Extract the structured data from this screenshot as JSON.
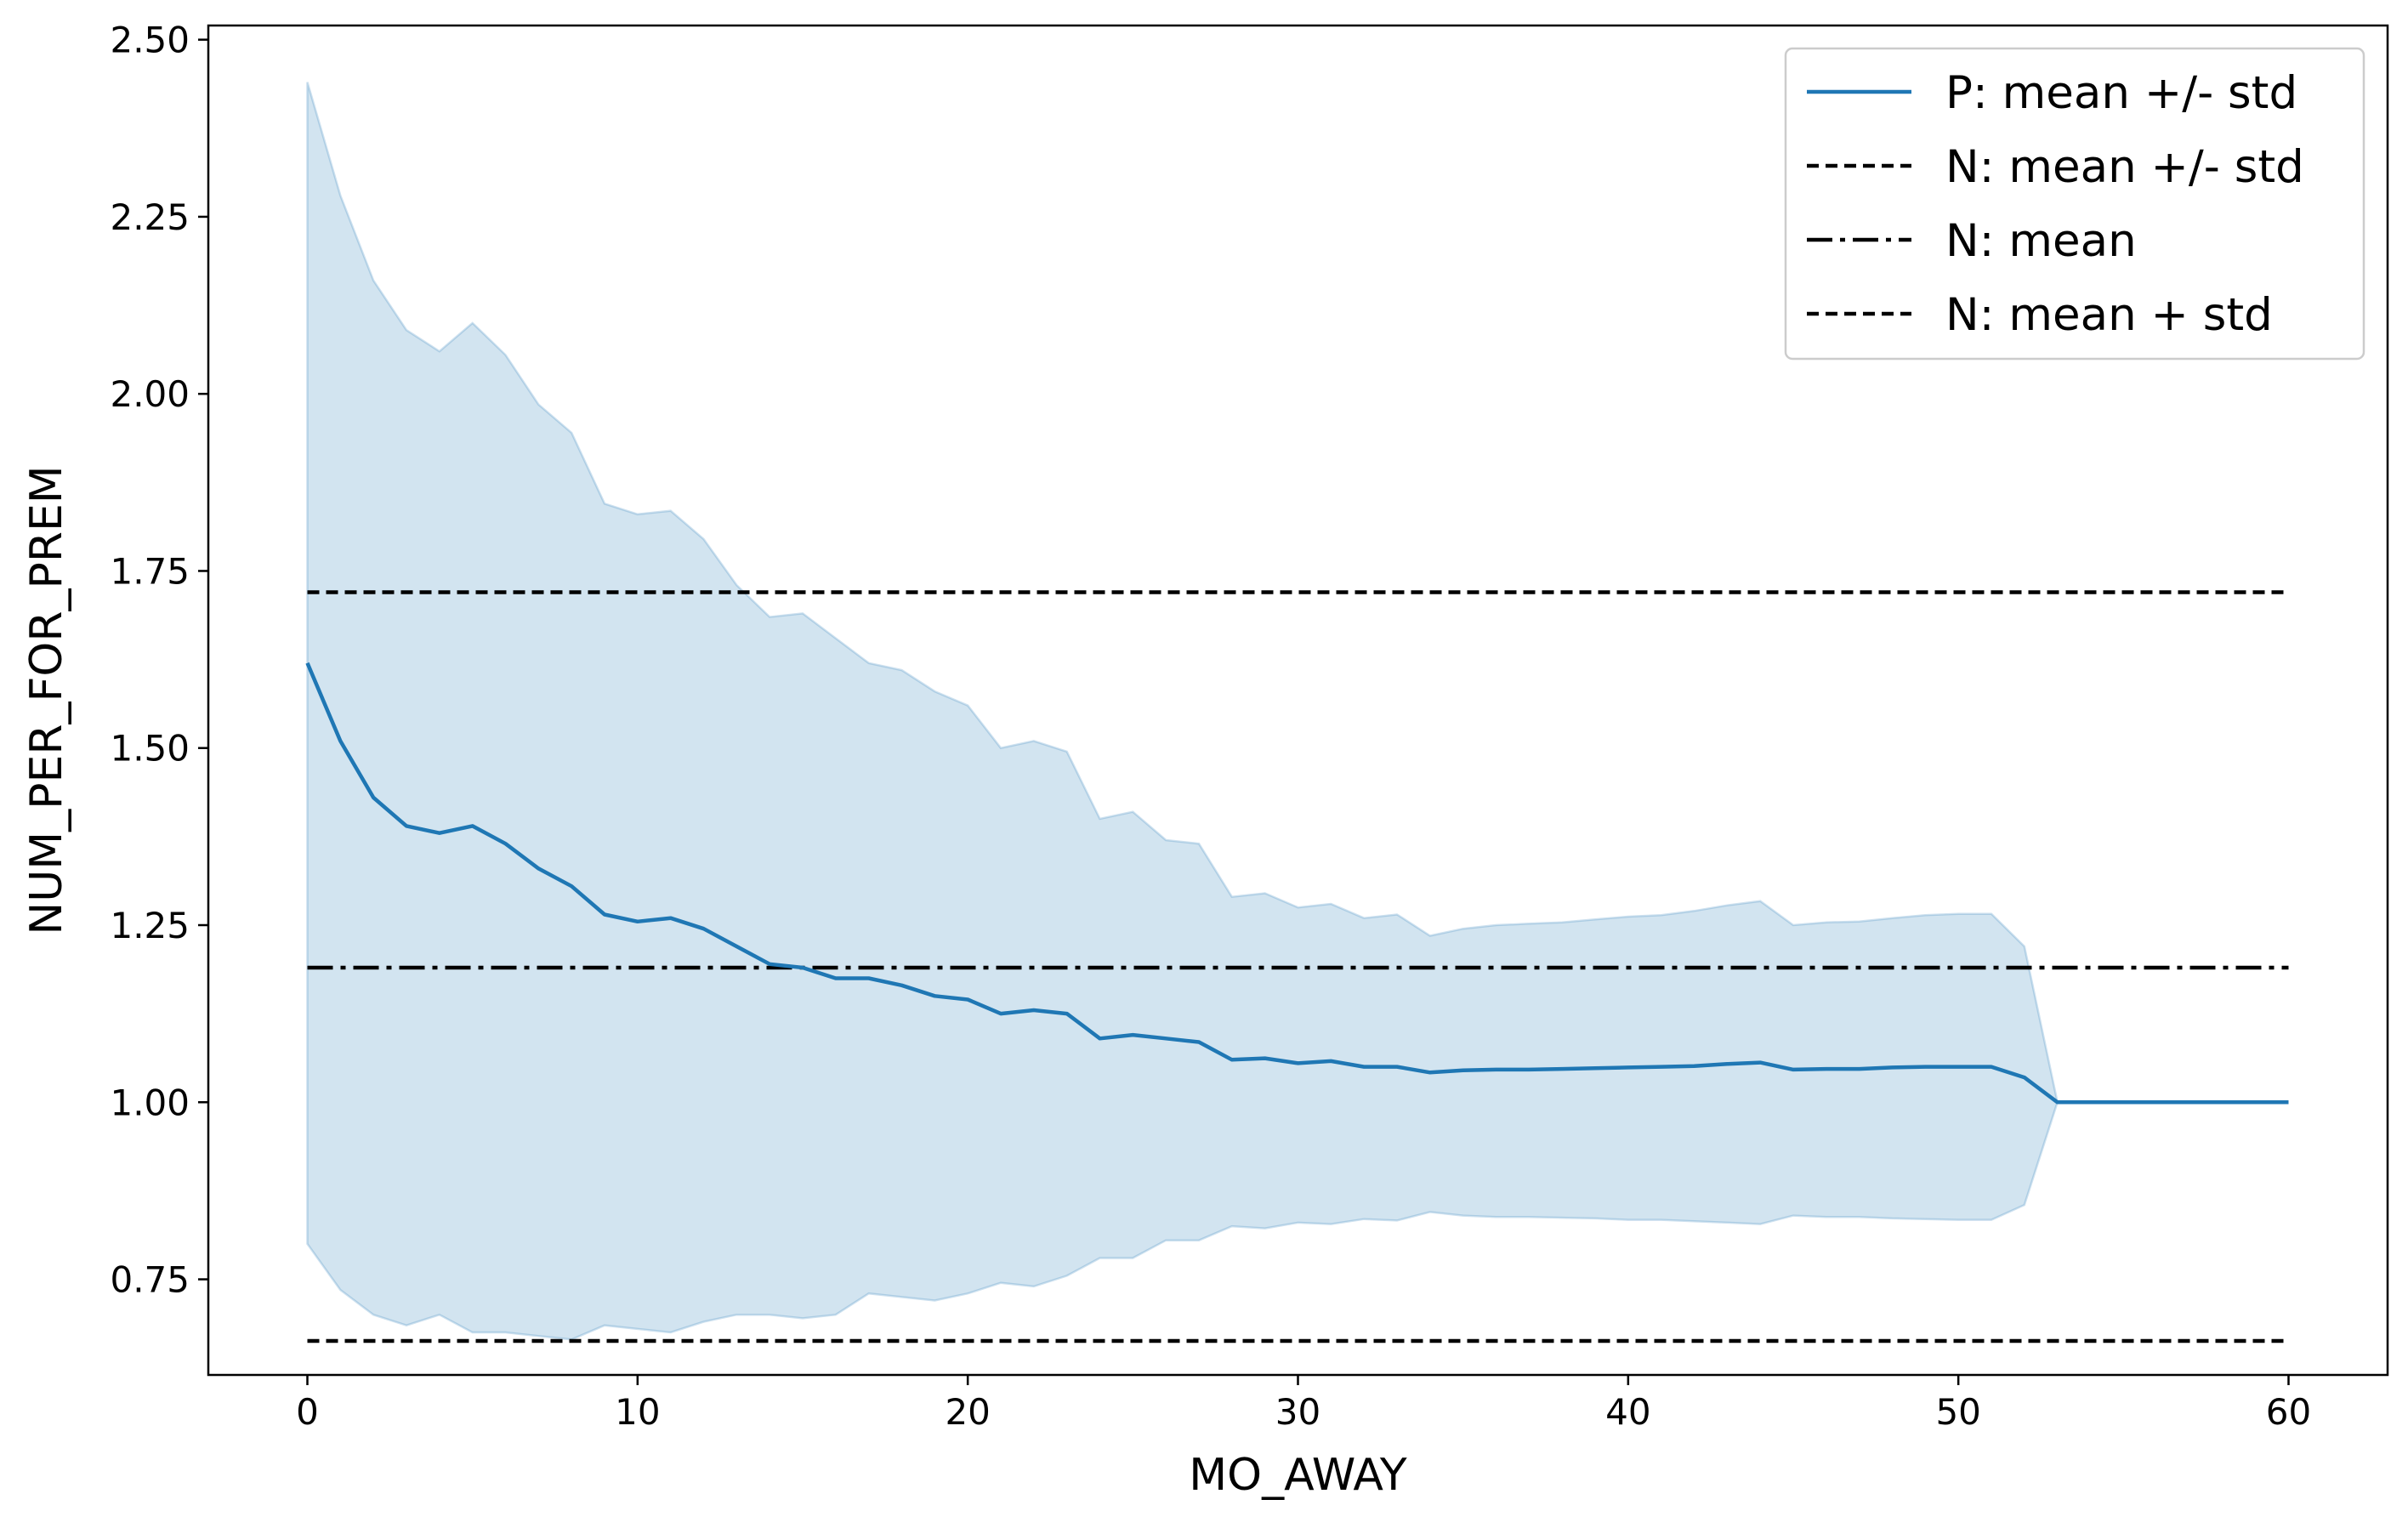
{
  "chart_data": {
    "type": "line",
    "title": "",
    "xlabel": "MO_AWAY",
    "ylabel": "NUM_PER_FOR_PREM",
    "xlim": [
      -3,
      63
    ],
    "ylim": [
      0.615,
      2.52
    ],
    "xticks": [
      0,
      10,
      20,
      30,
      40,
      50,
      60
    ],
    "xtick_labels": [
      "0",
      "10",
      "20",
      "30",
      "40",
      "50",
      "60"
    ],
    "yticks": [
      0.75,
      1.0,
      1.25,
      1.5,
      1.75,
      2.0,
      2.25,
      2.5
    ],
    "ytick_labels": [
      "0.75",
      "1.00",
      "1.25",
      "1.50",
      "1.75",
      "2.00",
      "2.25",
      "2.50"
    ],
    "grid": false,
    "legend_position": "top-right",
    "colors": {
      "p_line": "#1f77b4",
      "p_band": "#1f77b4",
      "n_lines": "#000000"
    },
    "series": [
      {
        "name": "P: mean +/- std",
        "style": "solid-with-band",
        "x": [
          0,
          1,
          2,
          3,
          4,
          5,
          6,
          7,
          8,
          9,
          10,
          11,
          12,
          13,
          14,
          15,
          16,
          17,
          18,
          19,
          20,
          21,
          22,
          23,
          24,
          25,
          26,
          27,
          28,
          29,
          30,
          31,
          32,
          33,
          34,
          35,
          36,
          37,
          38,
          39,
          40,
          41,
          42,
          43,
          44,
          45,
          46,
          47,
          48,
          49,
          50,
          51,
          52,
          53,
          54,
          55,
          56,
          57,
          58,
          59,
          60
        ],
        "mean": [
          1.62,
          1.51,
          1.43,
          1.39,
          1.38,
          1.39,
          1.365,
          1.33,
          1.305,
          1.265,
          1.255,
          1.26,
          1.245,
          1.22,
          1.195,
          1.19,
          1.175,
          1.175,
          1.165,
          1.15,
          1.145,
          1.125,
          1.13,
          1.125,
          1.09,
          1.095,
          1.09,
          1.085,
          1.06,
          1.062,
          1.055,
          1.058,
          1.05,
          1.05,
          1.042,
          1.045,
          1.046,
          1.046,
          1.047,
          1.048,
          1.049,
          1.05,
          1.051,
          1.054,
          1.056,
          1.046,
          1.047,
          1.047,
          1.049,
          1.05,
          1.05,
          1.05,
          1.035,
          1.0,
          1.0,
          1.0,
          1.0,
          1.0,
          1.0,
          1.0,
          1.0
        ],
        "upper": [
          2.44,
          2.28,
          2.16,
          2.09,
          2.06,
          2.1,
          2.055,
          1.985,
          1.945,
          1.845,
          1.83,
          1.835,
          1.795,
          1.73,
          1.685,
          1.69,
          1.655,
          1.62,
          1.61,
          1.58,
          1.56,
          1.5,
          1.51,
          1.495,
          1.4,
          1.41,
          1.37,
          1.365,
          1.29,
          1.295,
          1.275,
          1.28,
          1.26,
          1.265,
          1.235,
          1.245,
          1.25,
          1.252,
          1.254,
          1.258,
          1.262,
          1.264,
          1.27,
          1.278,
          1.284,
          1.25,
          1.254,
          1.255,
          1.26,
          1.264,
          1.266,
          1.266,
          1.22,
          1.0,
          1.0,
          1.0,
          1.0,
          1.0,
          1.0,
          1.0,
          1.0
        ],
        "lower": [
          0.8,
          0.735,
          0.7,
          0.685,
          0.7,
          0.675,
          0.675,
          0.67,
          0.665,
          0.685,
          0.68,
          0.675,
          0.69,
          0.7,
          0.7,
          0.695,
          0.7,
          0.73,
          0.725,
          0.72,
          0.73,
          0.745,
          0.74,
          0.755,
          0.78,
          0.78,
          0.805,
          0.805,
          0.825,
          0.822,
          0.83,
          0.828,
          0.835,
          0.833,
          0.845,
          0.84,
          0.838,
          0.838,
          0.837,
          0.836,
          0.834,
          0.834,
          0.832,
          0.83,
          0.828,
          0.84,
          0.838,
          0.838,
          0.836,
          0.835,
          0.834,
          0.834,
          0.855,
          1.0,
          1.0,
          1.0,
          1.0,
          1.0,
          1.0,
          1.0,
          1.0
        ]
      },
      {
        "name": "N: mean +/- std",
        "style": "dashed",
        "x": [
          0,
          60
        ],
        "y": [
          0.663,
          0.663
        ]
      },
      {
        "name": "N: mean",
        "style": "dashdot",
        "x": [
          0,
          60
        ],
        "y": [
          1.19,
          1.19
        ]
      },
      {
        "name": "N: mean + std",
        "style": "dashed",
        "x": [
          0,
          60
        ],
        "y": [
          1.72,
          1.72
        ]
      }
    ]
  }
}
